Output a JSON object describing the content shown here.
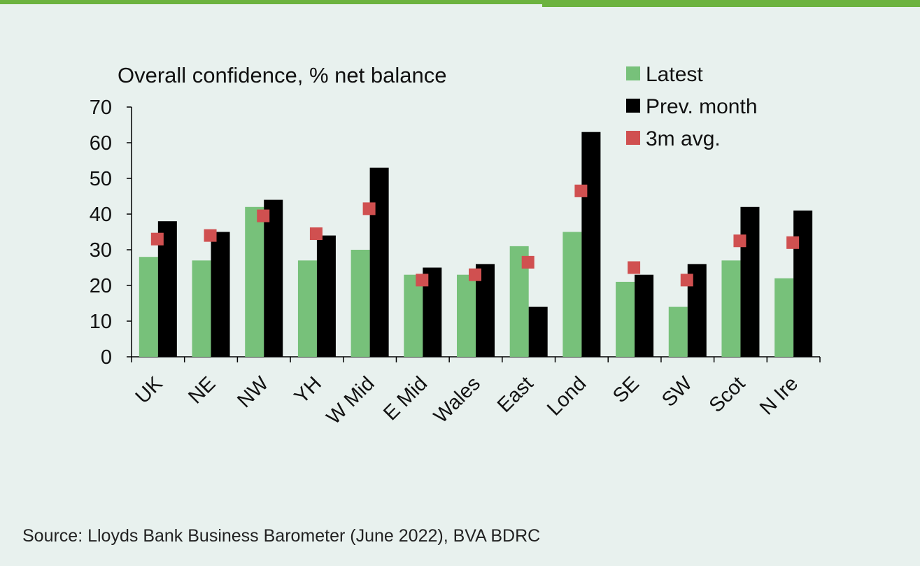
{
  "chart_data": {
    "type": "bar",
    "title": "Overall confidence, % net balance",
    "categories": [
      "UK",
      "NE",
      "NW",
      "YH",
      "W Mid",
      "E Mid",
      "Wales",
      "East",
      "Lond",
      "SE",
      "SW",
      "Scot",
      "N Ire"
    ],
    "series": [
      {
        "name": "Latest",
        "kind": "bar",
        "color": "#77c17a",
        "values": [
          28,
          27,
          42,
          27,
          30,
          23,
          23,
          31,
          35,
          21,
          14,
          27,
          22
        ]
      },
      {
        "name": "Prev. month",
        "kind": "bar",
        "color": "#000000",
        "values": [
          38,
          35,
          44,
          34,
          53,
          25,
          26,
          14,
          63,
          23,
          26,
          42,
          41
        ]
      },
      {
        "name": "3m avg.",
        "kind": "marker",
        "color": "#d05050",
        "values": [
          33,
          34,
          39.5,
          34.5,
          41.5,
          21.5,
          23,
          26.5,
          46.5,
          25,
          21.5,
          32.5,
          32
        ]
      }
    ],
    "ylim": [
      0,
      70
    ],
    "yticks": [
      "0",
      "10",
      "20",
      "30",
      "40",
      "50",
      "60",
      "70"
    ],
    "xlabel": "",
    "ylabel": "",
    "grid": false,
    "legend_position": "top-right"
  },
  "source": "Source: Lloyds Bank Business Barometer (June 2022), BVA BDRC",
  "colors": {
    "background": "#e8f1ee",
    "accent": "#6cb33f"
  }
}
